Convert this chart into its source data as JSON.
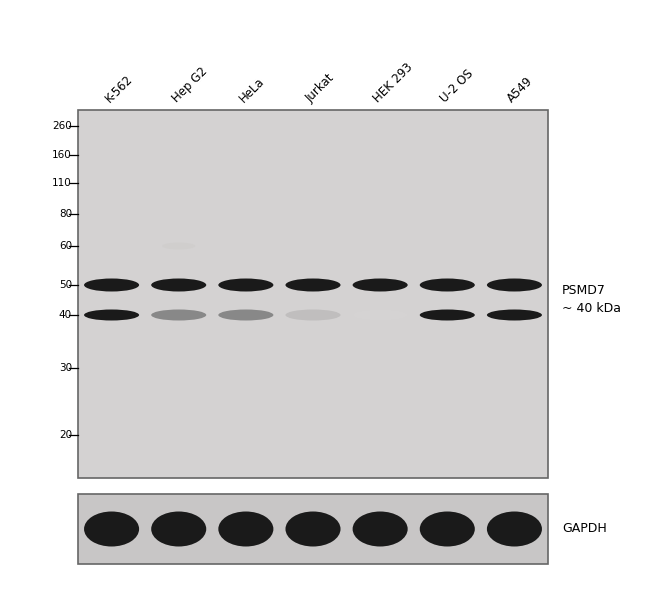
{
  "background_color": "#ffffff",
  "blot_bg_color": "#d4d2d2",
  "gapdh_bg_color": "#c8c6c6",
  "lane_labels": [
    "K-562",
    "Hep G2",
    "HeLa",
    "Jurkat",
    "HEK 293",
    "U-2 OS",
    "A549"
  ],
  "mw_markers": [
    260,
    160,
    110,
    80,
    60,
    50,
    40,
    30,
    20
  ],
  "annotation_label": "PSMD7\n~ 40 kDa",
  "gapdh_label": "GAPDH",
  "n_lanes": 7,
  "band_color_dark": "#1a1a1a",
  "band_color_mid": "#888888",
  "band_color_light": "#c0bebe",
  "band_color_faint": "#d5d3d3",
  "nonspecific_color": "#d0cecd"
}
